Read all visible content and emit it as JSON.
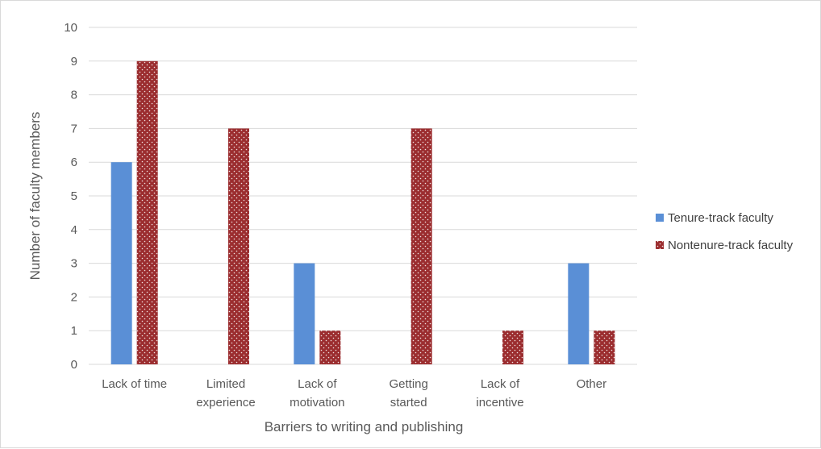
{
  "colors": {
    "tenure": "#5a8fd6",
    "nontenure": "#9b2d2f",
    "gridline": "#d9d9d9",
    "text": "#595959"
  },
  "chart_data": {
    "type": "bar",
    "title": "",
    "xlabel": "Barriers to writing and publishing",
    "ylabel": "Number of faculty members",
    "ylim": [
      0,
      10
    ],
    "yticks": [
      "0",
      "1",
      "2",
      "3",
      "4",
      "5",
      "6",
      "7",
      "8",
      "9",
      "10"
    ],
    "categories": [
      [
        "Lack of time"
      ],
      [
        "Limited",
        "experience"
      ],
      [
        "Lack of",
        "motivation"
      ],
      [
        "Getting",
        "started"
      ],
      [
        "Lack of",
        "incentive"
      ],
      [
        "Other"
      ]
    ],
    "series": [
      {
        "name": "Tenure-track faculty",
        "values": [
          6,
          0,
          3,
          0,
          0,
          3
        ]
      },
      {
        "name": "Nontenure-track faculty",
        "values": [
          9,
          7,
          1,
          7,
          1,
          1
        ]
      }
    ],
    "grid": true,
    "legend": "right"
  }
}
